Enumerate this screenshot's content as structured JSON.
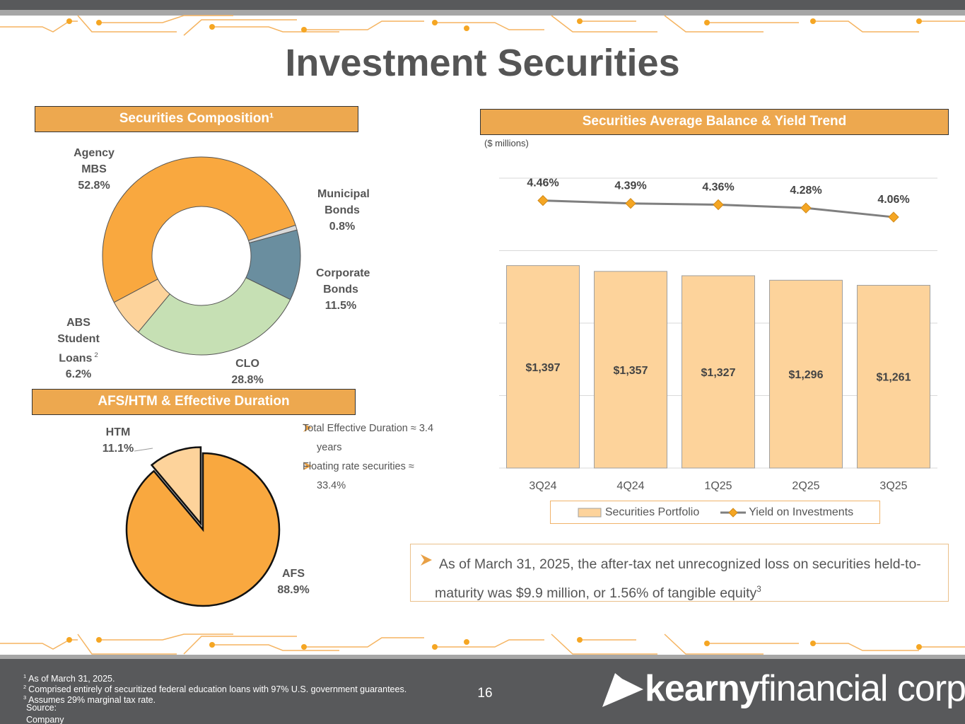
{
  "title": "Investment Securities",
  "chart_data": [
    {
      "type": "donut",
      "title": "Securities Composition¹",
      "categories": [
        "Agency MBS",
        "Municipal Bonds",
        "Corporate Bonds",
        "CLO",
        "ABS Student Loans"
      ],
      "notes": [
        null,
        null,
        null,
        null,
        "2"
      ],
      "values": [
        52.8,
        0.8,
        11.5,
        28.8,
        6.2
      ],
      "value_labels": [
        "52.8%",
        "0.8%",
        "11.5%",
        "28.8%",
        "6.2%"
      ],
      "colors": [
        "#F9A83F",
        "#D9D9D9",
        "#6A8E9F",
        "#C6E0B4",
        "#FDD39B"
      ]
    },
    {
      "type": "pie",
      "title": "AFS/HTM & Effective Duration",
      "categories": [
        "AFS",
        "HTM"
      ],
      "values": [
        88.9,
        11.1
      ],
      "value_labels": [
        "88.9%",
        "11.1%"
      ],
      "colors": [
        "#F9A83F",
        "#FDD39B"
      ]
    },
    {
      "type": "combo",
      "title": "Securities Average Balance & Yield Trend",
      "subtitle": "($ millions)",
      "categories": [
        "3Q24",
        "4Q24",
        "1Q25",
        "2Q25",
        "3Q25"
      ],
      "series": [
        {
          "name": "Securities Portfolio",
          "type": "bar",
          "color": "#FDD39B",
          "values": [
            1397,
            1357,
            1327,
            1296,
            1261
          ],
          "value_labels": [
            "$1,397",
            "$1,357",
            "$1,327",
            "$1,296",
            "$1,261"
          ]
        },
        {
          "name": "Yield on Investments",
          "type": "line",
          "axis": "y2",
          "color": "#7F7F7F",
          "marker_color": "#F5A623",
          "values": [
            4.46,
            4.39,
            4.36,
            4.28,
            4.06
          ],
          "value_labels": [
            "4.46%",
            "4.39%",
            "4.36%",
            "4.28%",
            "4.06%"
          ]
        }
      ],
      "ylim": [
        0,
        2000
      ],
      "yticks": [
        0,
        500,
        1000,
        1500,
        2000
      ],
      "y2lim": [
        -2,
        5
      ],
      "grid": true,
      "legend": "bottom"
    }
  ],
  "bullets": [
    "Total Effective Duration ≈ 3.4 years",
    "Floating rate securities ≈ 33.4%"
  ],
  "callout": {
    "text": "As of March 31, 2025, the after-tax net unrecognized loss on securities held-to-maturity was $9.9 million, or 1.56% of tangible equity",
    "note": "3"
  },
  "footnotes": [
    {
      "mark": "1",
      "text": "As of March 31, 2025."
    },
    {
      "mark": "2",
      "text": "Comprised entirely of securitized federal education loans with 97% U.S. government guarantees."
    },
    {
      "mark": "3",
      "text": "Assumes 29% marginal tax rate."
    }
  ],
  "source": "Source: Company Filings.",
  "page_number": "16",
  "logo": {
    "bold": "kearny",
    "light": "financial corp."
  }
}
